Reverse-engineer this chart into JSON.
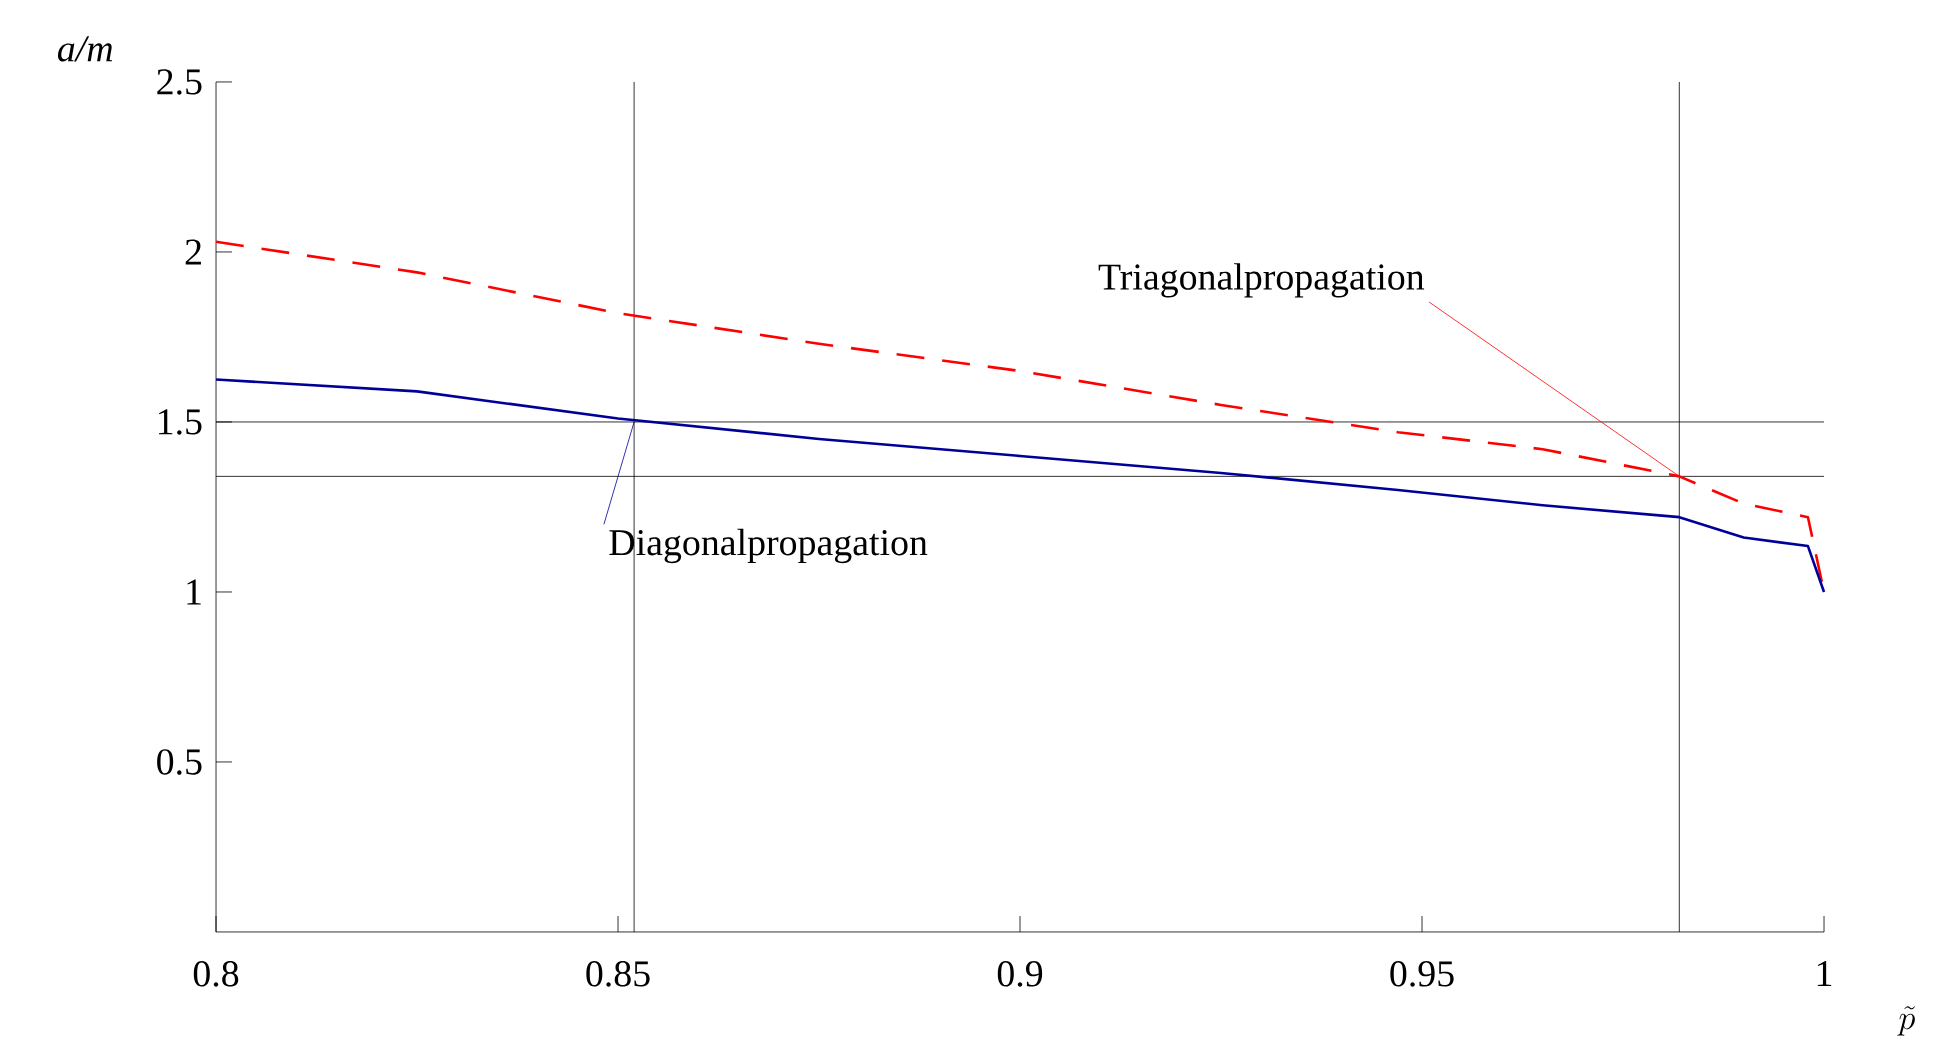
{
  "chart_data": {
    "type": "line",
    "xlabel": "\\tilde{p}",
    "ylabel": "a/m",
    "xlim": [
      0.8,
      1
    ],
    "ylim": [
      0,
      2.5
    ],
    "xticks": [
      0.8,
      0.85,
      0.9,
      0.95,
      1
    ],
    "yticks": [
      0.5,
      1,
      1.5,
      2,
      2.5
    ],
    "x": [
      0.8,
      0.825,
      0.85,
      0.875,
      0.9,
      0.925,
      0.947,
      0.965,
      0.982,
      0.99,
      0.998,
      1
    ],
    "series": [
      {
        "color": "#ff0000",
        "line_style": "dashed",
        "values": [
          2.03,
          1.94,
          1.82,
          1.73,
          1.65,
          1.55,
          1.47,
          1.42,
          1.34,
          1.26,
          1.22,
          1.0
        ]
      },
      {
        "color": "#000099",
        "line_style": "solid",
        "values": [
          1.625,
          1.59,
          1.51,
          1.45,
          1.4,
          1.35,
          1.3,
          1.255,
          1.22,
          1.16,
          1.135,
          1.0
        ]
      }
    ],
    "ref_lines": [
      {
        "axis": "x",
        "value": 0.852,
        "color": "#000000"
      },
      {
        "axis": "x",
        "value": 0.982,
        "color": "#000000"
      },
      {
        "axis": "y",
        "value": 1.5,
        "color": "#000000"
      },
      {
        "axis": "y",
        "value": 1.34,
        "color": "#000000"
      }
    ],
    "annotations": [
      {
        "text": "Triagonalpropagation",
        "x": 0.982,
        "y": 1.34
      },
      {
        "text": "Diagonalpropagation",
        "x": 0.852,
        "y": 1.5
      }
    ],
    "grid": false,
    "marker": "none"
  }
}
